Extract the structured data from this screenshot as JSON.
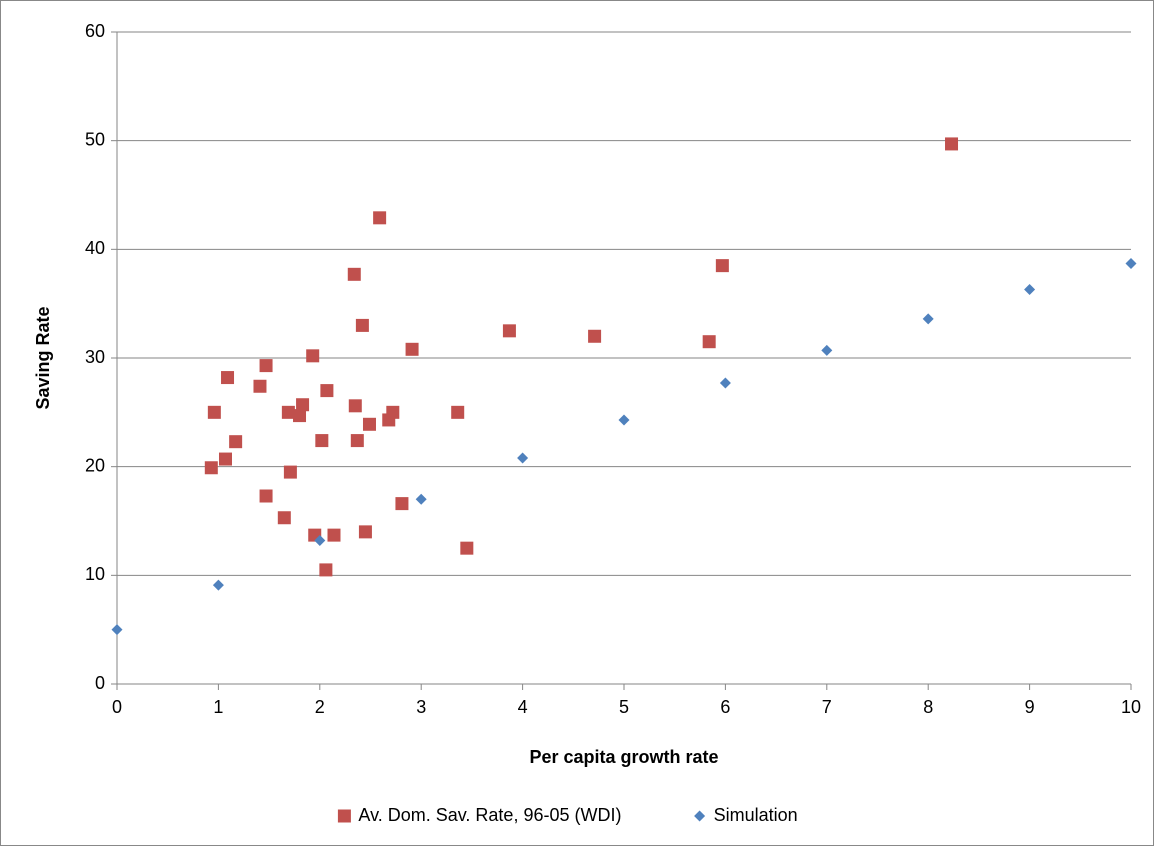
{
  "chart_data": {
    "type": "scatter",
    "xlabel": "Per capita growth rate",
    "ylabel": "Saving Rate",
    "xlim": [
      0,
      10
    ],
    "xticks": [
      0,
      1,
      2,
      3,
      4,
      5,
      6,
      7,
      8,
      9,
      10
    ],
    "ylim": [
      0,
      60
    ],
    "yticks": [
      0,
      10,
      20,
      30,
      40,
      50,
      60
    ],
    "grid": true,
    "legend": "bottom",
    "series": [
      {
        "name": "Av. Dom. Sav. Rate, 96-05 (WDI)",
        "color": "#c0504d",
        "marker": "square",
        "x": [
          0.93,
          0.96,
          1.07,
          1.09,
          1.17,
          1.41,
          1.47,
          1.47,
          1.65,
          1.69,
          1.71,
          1.8,
          1.83,
          1.93,
          1.95,
          2.02,
          2.06,
          2.07,
          2.14,
          2.34,
          2.35,
          2.37,
          2.42,
          2.45,
          2.49,
          2.59,
          2.68,
          2.72,
          2.81,
          2.91,
          3.36,
          3.45,
          3.87,
          4.71,
          5.84,
          5.97,
          8.23
        ],
        "values": [
          19.9,
          25.0,
          20.7,
          28.2,
          22.3,
          27.4,
          17.3,
          29.3,
          15.3,
          25.0,
          19.5,
          24.7,
          25.7,
          30.2,
          13.7,
          22.4,
          10.5,
          27.0,
          13.7,
          37.7,
          25.6,
          22.4,
          33.0,
          14.0,
          23.9,
          42.9,
          24.3,
          25.0,
          16.6,
          30.8,
          25.0,
          12.5,
          32.5,
          32.0,
          31.5,
          38.5,
          49.7
        ]
      },
      {
        "name": "Simulation",
        "color": "#4f81bd",
        "marker": "diamond",
        "x": [
          0,
          1,
          2,
          3,
          4,
          5,
          6,
          7,
          8,
          9,
          10
        ],
        "values": [
          5.0,
          9.1,
          13.2,
          17.0,
          20.8,
          24.3,
          27.7,
          30.7,
          33.6,
          36.3,
          38.7
        ]
      }
    ]
  }
}
